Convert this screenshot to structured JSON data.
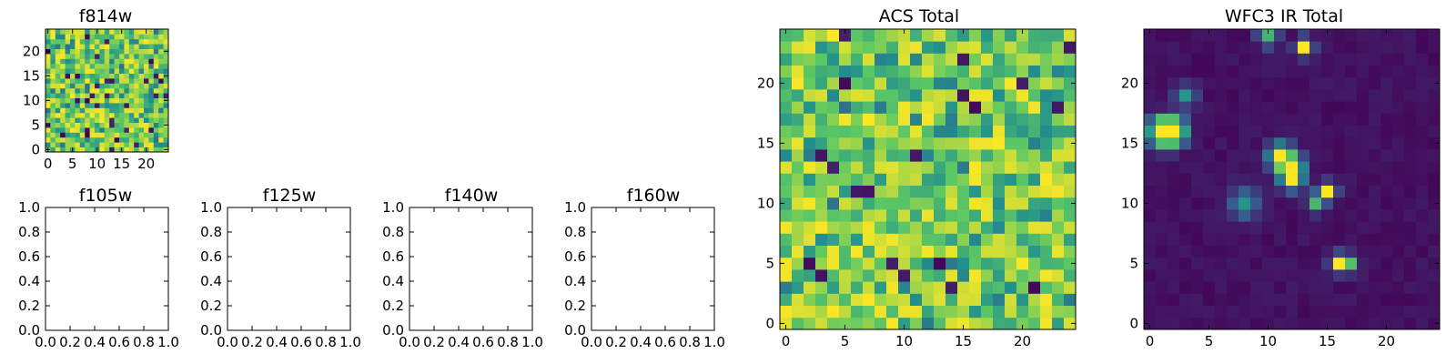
{
  "chart_data": [
    {
      "type": "heatmap",
      "title": "f814w",
      "xlim": [
        -0.5,
        24.5
      ],
      "ylim": [
        -0.5,
        24.5
      ],
      "xticks": [
        0,
        5,
        10,
        15,
        20
      ],
      "yticks": [
        0,
        5,
        10,
        15,
        20
      ],
      "colormap": "viridis",
      "cmap_stops": [
        "#440154",
        "#3b528b",
        "#21908d",
        "#5dc863",
        "#fde725"
      ],
      "grid": false,
      "rows": 25,
      "cols": 25,
      "field": "uniform bright noise (mostly green/yellow, sparse dark pixels)",
      "values_note": "per-pixel values not individually readable; rendered as 25x25 noise field"
    },
    {
      "type": "empty_axes",
      "title": "f105w",
      "xlim": [
        0,
        1
      ],
      "ylim": [
        0,
        1
      ],
      "xticks": [
        "0.0",
        "0.2",
        "0.4",
        "0.6",
        "0.8",
        "1.0"
      ],
      "yticks": [
        "0.0",
        "0.2",
        "0.4",
        "0.6",
        "0.8",
        "1.0"
      ]
    },
    {
      "type": "empty_axes",
      "title": "f125w",
      "xlim": [
        0,
        1
      ],
      "ylim": [
        0,
        1
      ],
      "xticks": [
        "0.0",
        "0.2",
        "0.4",
        "0.6",
        "0.8",
        "1.0"
      ],
      "yticks": [
        "0.0",
        "0.2",
        "0.4",
        "0.6",
        "0.8",
        "1.0"
      ]
    },
    {
      "type": "empty_axes",
      "title": "f140w",
      "xlim": [
        0,
        1
      ],
      "ylim": [
        0,
        1
      ],
      "xticks": [
        "0.0",
        "0.2",
        "0.4",
        "0.6",
        "0.8",
        "1.0"
      ],
      "yticks": [
        "0.0",
        "0.2",
        "0.4",
        "0.6",
        "0.8",
        "1.0"
      ]
    },
    {
      "type": "empty_axes",
      "title": "f160w",
      "xlim": [
        0,
        1
      ],
      "ylim": [
        0,
        1
      ],
      "xticks": [
        "0.0",
        "0.2",
        "0.4",
        "0.6",
        "0.8",
        "1.0"
      ],
      "yticks": [
        "0.0",
        "0.2",
        "0.4",
        "0.6",
        "0.8",
        "1.0"
      ]
    },
    {
      "type": "heatmap",
      "title": "ACS Total",
      "xlim": [
        -0.5,
        24.5
      ],
      "ylim": [
        -0.5,
        24.5
      ],
      "xticks": [
        0,
        5,
        10,
        15,
        20
      ],
      "yticks": [
        0,
        5,
        10,
        15,
        20
      ],
      "colormap": "viridis",
      "grid": false,
      "rows": 25,
      "cols": 25,
      "field": "uniform bright noise (mostly green/yellow, sparse dark pixels)"
    },
    {
      "type": "heatmap",
      "title": "WFC3 IR Total",
      "xlim": [
        -0.5,
        24.5
      ],
      "ylim": [
        -0.5,
        24.5
      ],
      "xticks": [
        0,
        5,
        10,
        15,
        20
      ],
      "yticks": [
        0,
        5,
        10,
        15,
        20
      ],
      "colormap": "viridis",
      "grid": false,
      "rows": 25,
      "cols": 25,
      "background_level": 0.05,
      "sources": [
        {
          "x": 1,
          "y": 16,
          "peak": 1.0,
          "sigma": 0.8
        },
        {
          "x": 2,
          "y": 16,
          "peak": 1.0,
          "sigma": 0.8
        },
        {
          "x": 11,
          "y": 14,
          "peak": 0.95,
          "sigma": 0.7
        },
        {
          "x": 12,
          "y": 13,
          "peak": 0.95,
          "sigma": 0.7
        },
        {
          "x": 12,
          "y": 12,
          "peak": 0.85,
          "sigma": 0.6
        },
        {
          "x": 15,
          "y": 11,
          "peak": 1.0,
          "sigma": 0.5
        },
        {
          "x": 14,
          "y": 10,
          "peak": 0.6,
          "sigma": 0.5
        },
        {
          "x": 8,
          "y": 10,
          "peak": 0.45,
          "sigma": 0.9
        },
        {
          "x": 16,
          "y": 5,
          "peak": 1.0,
          "sigma": 0.5
        },
        {
          "x": 17,
          "y": 5,
          "peak": 0.55,
          "sigma": 0.5
        },
        {
          "x": 13,
          "y": 23,
          "peak": 0.95,
          "sigma": 0.5
        },
        {
          "x": 10,
          "y": 24,
          "peak": 0.6,
          "sigma": 0.6
        },
        {
          "x": 3,
          "y": 19,
          "peak": 0.5,
          "sigma": 0.6
        }
      ]
    }
  ]
}
